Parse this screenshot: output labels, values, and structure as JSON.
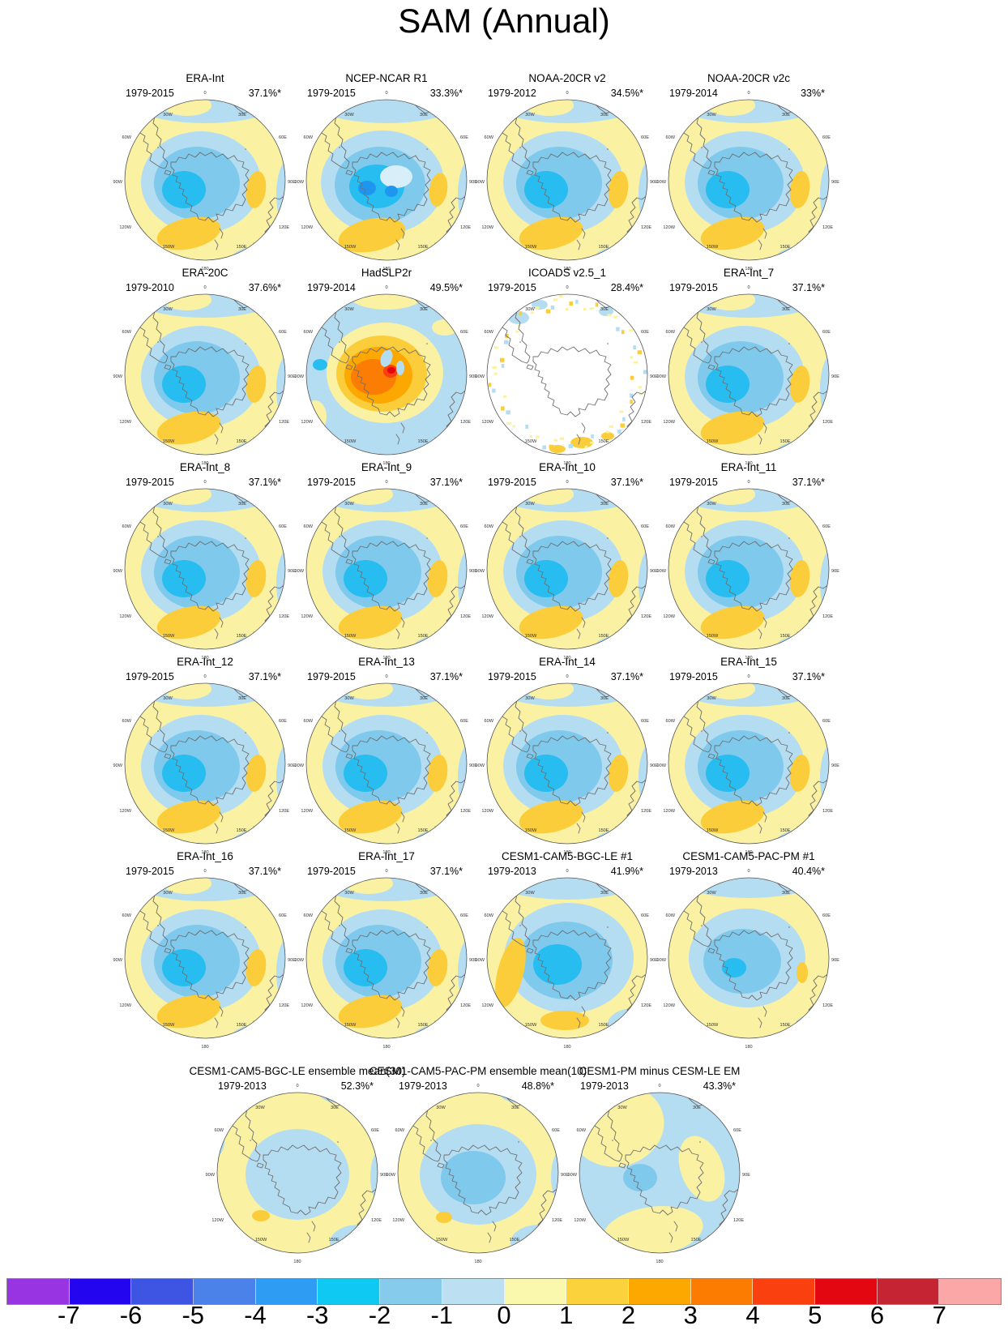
{
  "page_title": "SAM (Annual)",
  "map_colors": {
    "yellow": "#FAF2A2",
    "lightblue": "#B5DDF2",
    "skyblue": "#7FC9EC",
    "cyan": "#27BDF1",
    "dodger": "#1E96F0",
    "palepatch": "#D8EEF9",
    "gold": "#FBCD3A",
    "orange": "#FCA800",
    "darkorange": "#FB7D04",
    "redorange": "#F9400E",
    "red": "#E30712",
    "white": "#FFFFFF",
    "coast": "#6F6F6F",
    "rim": "#555555"
  },
  "chart_data": {
    "type": "heatmap",
    "title": "SAM (Annual)",
    "lon_labels": [
      "0",
      "30W",
      "30E",
      "60W",
      "60E",
      "90W",
      "90E",
      "120W",
      "120E",
      "150W",
      "150E",
      "180"
    ],
    "panels": [
      {
        "title": "ERA-Int",
        "years": "1979-2015",
        "pct": "37.1%*",
        "pattern": "sam_neg"
      },
      {
        "title": "NCEP-NCAR R1",
        "years": "1979-2015",
        "pct": "33.3%*",
        "pattern": "ncep"
      },
      {
        "title": "NOAA-20CR v2",
        "years": "1979-2012",
        "pct": "34.5%*",
        "pattern": "sam_neg"
      },
      {
        "title": "NOAA-20CR v2c",
        "years": "1979-2014",
        "pct": "33%*",
        "pattern": "sam_neg"
      },
      {
        "title": "ERA-20C",
        "years": "1979-2010",
        "pct": "37.6%*",
        "pattern": "sam_neg"
      },
      {
        "title": "HadSLP2r",
        "years": "1979-2014",
        "pct": "49.5%*",
        "pattern": "hadslp"
      },
      {
        "title": "ICOADS v2.5_1",
        "years": "1979-2015",
        "pct": "28.4%*",
        "pattern": "icoads"
      },
      {
        "title": "ERA-Int_7",
        "years": "1979-2015",
        "pct": "37.1%*",
        "pattern": "sam_neg"
      },
      {
        "title": "ERA-Int_8",
        "years": "1979-2015",
        "pct": "37.1%*",
        "pattern": "sam_neg"
      },
      {
        "title": "ERA-Int_9",
        "years": "1979-2015",
        "pct": "37.1%*",
        "pattern": "sam_neg"
      },
      {
        "title": "ERA-Int_10",
        "years": "1979-2015",
        "pct": "37.1%*",
        "pattern": "sam_neg"
      },
      {
        "title": "ERA-Int_11",
        "years": "1979-2015",
        "pct": "37.1%*",
        "pattern": "sam_neg"
      },
      {
        "title": "ERA-Int_12",
        "years": "1979-2015",
        "pct": "37.1%*",
        "pattern": "sam_neg"
      },
      {
        "title": "ERA-Int_13",
        "years": "1979-2015",
        "pct": "37.1%*",
        "pattern": "sam_neg"
      },
      {
        "title": "ERA-Int_14",
        "years": "1979-2015",
        "pct": "37.1%*",
        "pattern": "sam_neg"
      },
      {
        "title": "ERA-Int_15",
        "years": "1979-2015",
        "pct": "37.1%*",
        "pattern": "sam_neg"
      },
      {
        "title": "ERA-Int_16",
        "years": "1979-2015",
        "pct": "37.1%*",
        "pattern": "sam_neg"
      },
      {
        "title": "ERA-Int_17",
        "years": "1979-2015",
        "pct": "37.1%*",
        "pattern": "sam_neg"
      },
      {
        "title": "CESM1-CAM5-BGC-LE #1",
        "years": "1979-2013",
        "pct": "41.9%*",
        "pattern": "cesm_le1"
      },
      {
        "title": "CESM1-CAM5-PAC-PM #1",
        "years": "1979-2013",
        "pct": "40.4%*",
        "pattern": "cesm_pm1"
      },
      {
        "title": "CESM1-CAM5-BGC-LE ensemble mean(30)",
        "years": "1979-2013",
        "pct": "52.3%*",
        "pattern": "ens_mean"
      },
      {
        "title": "CESM1-CAM5-PAC-PM ensemble mean(10)",
        "years": "1979-2013",
        "pct": "48.8%*",
        "pattern": "ens_mean2"
      },
      {
        "title": "CESM1-PM minus CESM-LE EM",
        "years": "1979-2013",
        "pct": "43.3%*",
        "pattern": "pm_minus_le"
      }
    ],
    "colorbar": {
      "labels": [
        "-7",
        "-6",
        "-5",
        "-4",
        "-3",
        "-2",
        "-1",
        "0",
        "1",
        "2",
        "3",
        "4",
        "5",
        "6",
        "7"
      ],
      "colors": [
        "#9934E2",
        "#2405F0",
        "#3D55E2",
        "#4B82E9",
        "#2F9CF3",
        "#0FC9F2",
        "#86CBEC",
        "#BCE0F2",
        "#FAF8AC",
        "#FBD23B",
        "#FCA800",
        "#FB7C00",
        "#F9400E",
        "#E30712",
        "#C52532",
        "#FBA7A7"
      ]
    }
  }
}
